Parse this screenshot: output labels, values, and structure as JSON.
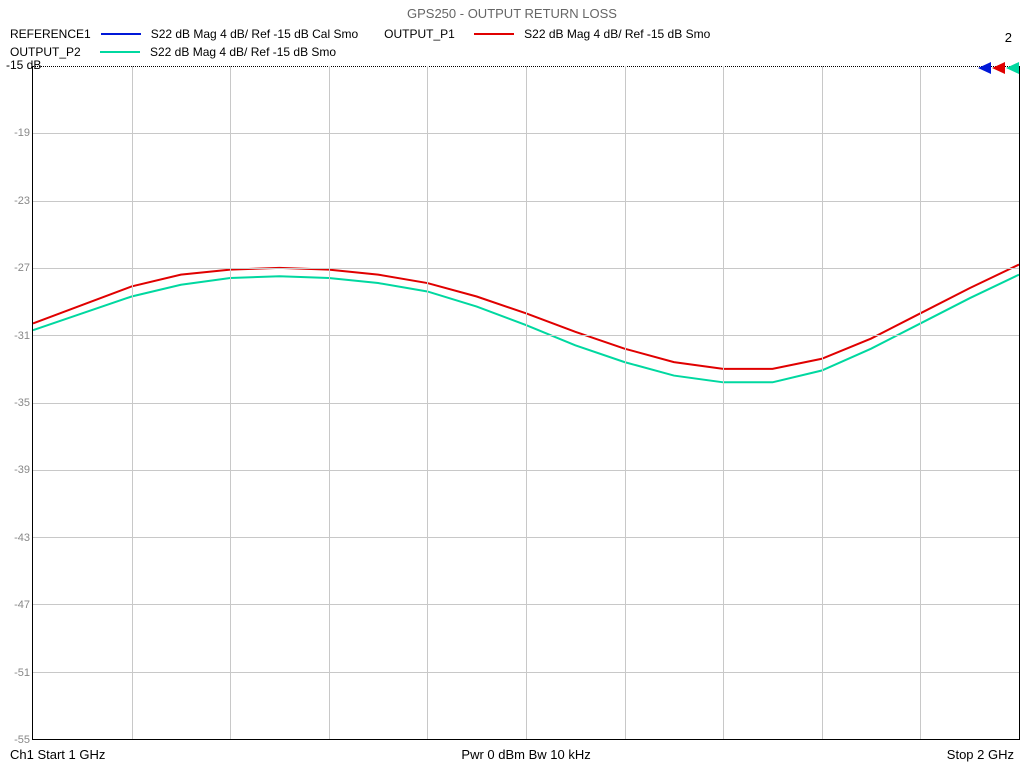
{
  "title": "GPS250 - OUTPUT RETURN LOSS",
  "trace_number": "2",
  "ref_label": "-15 dB",
  "legend": {
    "rows": [
      [
        {
          "name": "REFERENCE1",
          "color": "#0018d8",
          "spec": "S22  dB Mag  4 dB/ Ref -15 dB  Cal Smo"
        },
        {
          "name": "OUTPUT_P1",
          "color": "#e00000",
          "spec": "S22  dB Mag  4 dB/ Ref -15 dB  Smo"
        }
      ],
      [
        {
          "name": "OUTPUT_P2",
          "color": "#00d8a0",
          "spec": "S22  dB Mag  4 dB/ Ref -15 dB  Smo"
        }
      ]
    ]
  },
  "chart": {
    "type": "line",
    "background_color": "#ffffff",
    "grid_color": "#c8c8c8",
    "axis_color": "#000000",
    "x": {
      "start_label": "Ch1  Start  1 GHz",
      "stop_label": "Stop  2 GHz",
      "divisions": 10
    },
    "y": {
      "min": -55,
      "max": -15,
      "step": 4,
      "ticks": [
        -15,
        -19,
        -23,
        -27,
        -31,
        -35,
        -39,
        -43,
        -47,
        -51,
        -55
      ],
      "unit": "dB"
    },
    "footer_center": "Pwr  0 dBm  Bw  10 kHz",
    "line_width": 2,
    "series": [
      {
        "name": "OUTPUT_P1",
        "color": "#e00000",
        "x": [
          0.0,
          0.05,
          0.1,
          0.15,
          0.2,
          0.25,
          0.3,
          0.35,
          0.4,
          0.45,
          0.5,
          0.55,
          0.6,
          0.65,
          0.7,
          0.75,
          0.8,
          0.85,
          0.9,
          0.95,
          1.0
        ],
        "y": [
          -30.3,
          -29.2,
          -28.1,
          -27.4,
          -27.1,
          -27.0,
          -27.1,
          -27.4,
          -27.9,
          -28.7,
          -29.7,
          -30.8,
          -31.8,
          -32.6,
          -33.0,
          -33.0,
          -32.4,
          -31.2,
          -29.7,
          -28.2,
          -26.8
        ]
      },
      {
        "name": "OUTPUT_P2",
        "color": "#00d8a0",
        "x": [
          0.0,
          0.05,
          0.1,
          0.15,
          0.2,
          0.25,
          0.3,
          0.35,
          0.4,
          0.45,
          0.5,
          0.55,
          0.6,
          0.65,
          0.7,
          0.75,
          0.8,
          0.85,
          0.9,
          0.95,
          1.0
        ],
        "y": [
          -30.7,
          -29.7,
          -28.7,
          -28.0,
          -27.6,
          -27.5,
          -27.6,
          -27.9,
          -28.4,
          -29.3,
          -30.4,
          -31.6,
          -32.6,
          -33.4,
          -33.8,
          -33.8,
          -33.1,
          -31.8,
          -30.3,
          -28.8,
          -27.4
        ]
      }
    ],
    "markers": [
      {
        "color": "#0018d8"
      },
      {
        "color": "#e00000"
      },
      {
        "color": "#00d8a0"
      }
    ]
  }
}
